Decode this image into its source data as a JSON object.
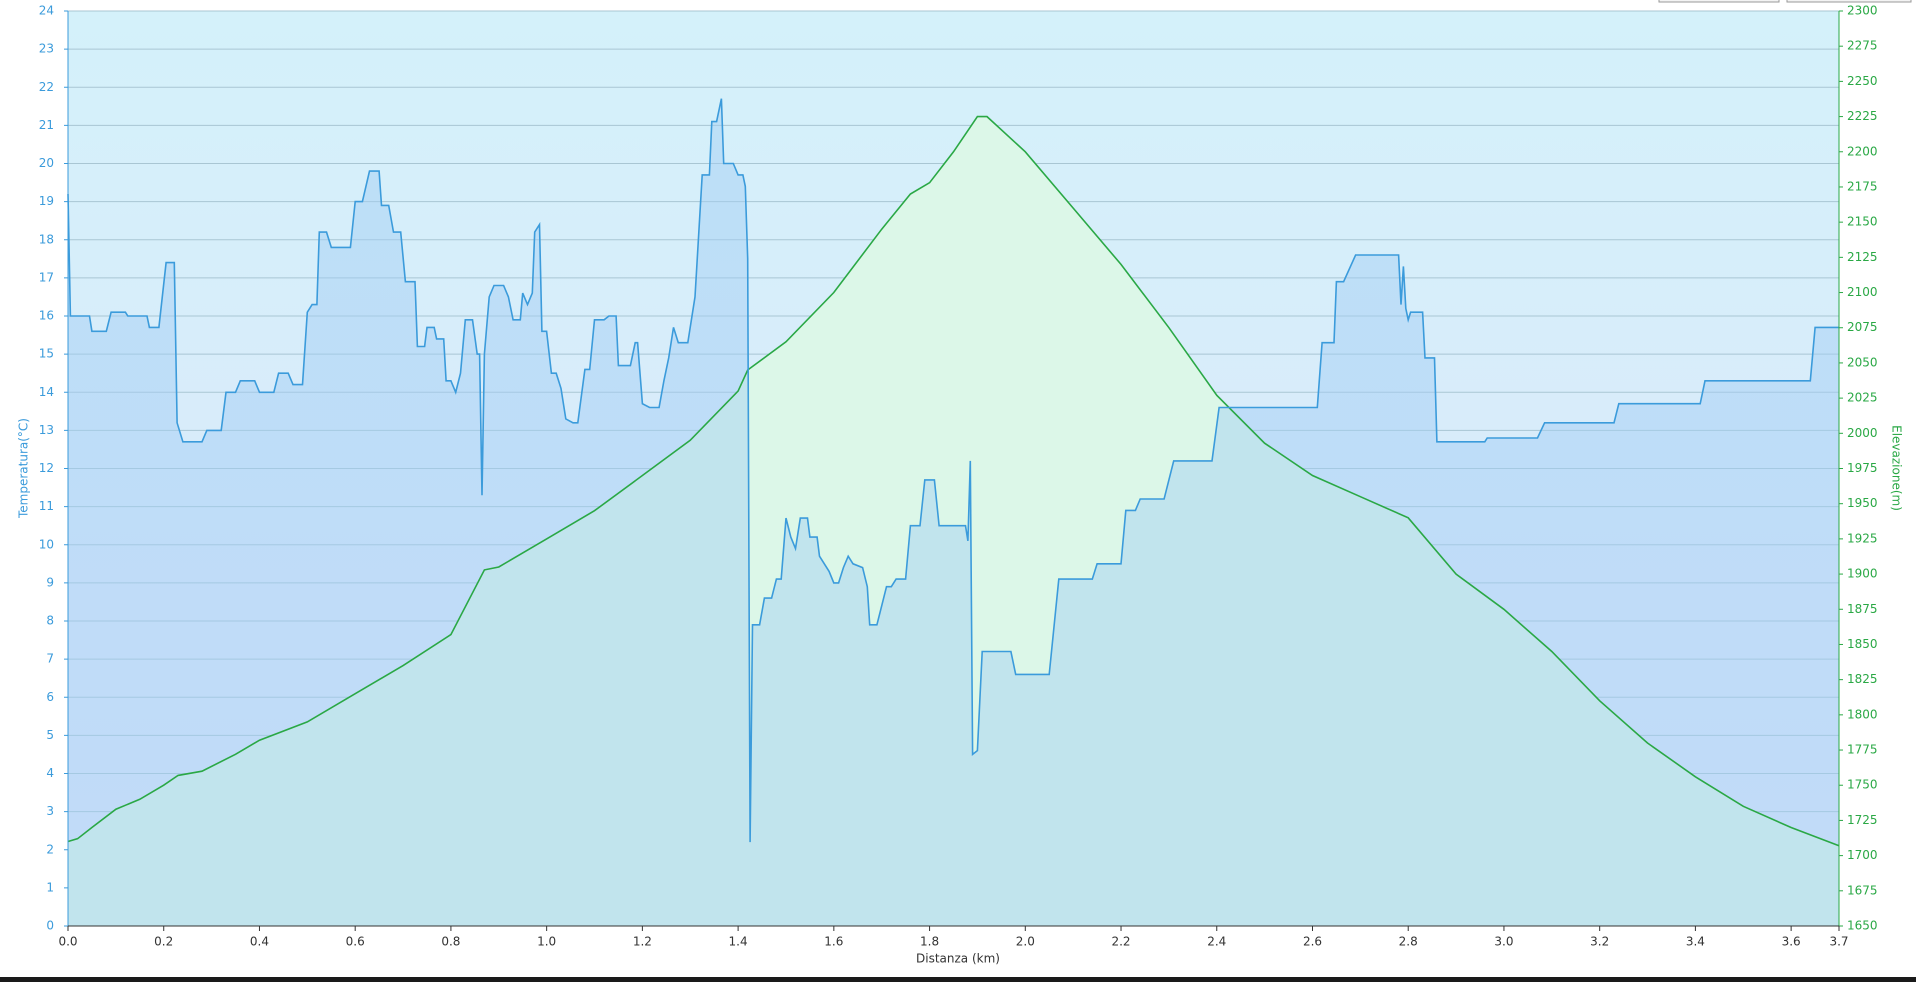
{
  "chart_data": {
    "type": "line",
    "x_label": "Distanza  (km)",
    "y_label": "Temperatura(°C)",
    "y2_label": "Elevazione(m)",
    "xlim": [
      0,
      3.7
    ],
    "xticks": [
      {
        "value": 0,
        "label": "0.0"
      },
      0.2,
      0.4,
      0.6,
      0.8,
      {
        "value": 1,
        "label": "1.0"
      },
      1.2,
      1.4,
      1.6,
      1.8,
      {
        "value": 2,
        "label": "2.0"
      },
      2.2,
      2.4,
      2.6,
      2.8,
      {
        "value": 3,
        "label": "3.0"
      },
      3.2,
      3.4,
      3.6,
      3.7
    ],
    "ylim": [
      0,
      24
    ],
    "yticks": [
      0,
      1,
      2,
      3,
      4,
      5,
      6,
      7,
      8,
      9,
      10,
      11,
      12,
      13,
      14,
      15,
      16,
      17,
      18,
      19,
      20,
      21,
      22,
      23,
      24
    ],
    "y2lim": [
      1650,
      2300
    ],
    "y2ticks": [
      1650,
      1675,
      1700,
      1725,
      1750,
      1775,
      1800,
      1825,
      1850,
      1875,
      1900,
      1925,
      1950,
      1975,
      2000,
      2025,
      2050,
      2075,
      2100,
      2125,
      2150,
      2175,
      2200,
      2225,
      2250,
      2275,
      2300
    ],
    "grid": true,
    "series": [
      {
        "name": "Elevazione",
        "axis": "y2",
        "color": "#2aa845",
        "fill": "#dcf7e8",
        "x": [
          0,
          0.02,
          0.05,
          0.1,
          0.15,
          0.2,
          0.23,
          0.28,
          0.35,
          0.4,
          0.5,
          0.6,
          0.7,
          0.8,
          0.87,
          0.9,
          1.0,
          1.1,
          1.2,
          1.3,
          1.4,
          1.42,
          1.5,
          1.6,
          1.7,
          1.76,
          1.8,
          1.85,
          1.9,
          1.92,
          2.0,
          2.1,
          2.2,
          2.3,
          2.4,
          2.5,
          2.6,
          2.7,
          2.8,
          2.9,
          3.0,
          3.1,
          3.2,
          3.3,
          3.4,
          3.5,
          3.6,
          3.7
        ],
        "values": [
          1710,
          1712,
          1720,
          1733,
          1740,
          1750,
          1757,
          1760,
          1772,
          1782,
          1795,
          1815,
          1835,
          1857,
          1903,
          1905,
          1925,
          1945,
          1970,
          1995,
          2030,
          2045,
          2065,
          2100,
          2145,
          2170,
          2178,
          2200,
          2225,
          2225,
          2200,
          2160,
          2120,
          2075,
          2027,
          1993,
          1970,
          1955,
          1940,
          1900,
          1875,
          1845,
          1810,
          1780,
          1756,
          1735,
          1720,
          1707
        ]
      },
      {
        "name": "Temperatura",
        "axis": "y",
        "color": "#3b9bdb",
        "fill": "rgba(160,205,245,0.45)",
        "x": [
          0,
          0.005,
          0.045,
          0.05,
          0.08,
          0.09,
          0.12,
          0.125,
          0.165,
          0.17,
          0.19,
          0.205,
          0.222,
          0.228,
          0.24,
          0.28,
          0.29,
          0.32,
          0.33,
          0.35,
          0.36,
          0.39,
          0.4,
          0.43,
          0.44,
          0.46,
          0.47,
          0.49,
          0.5,
          0.51,
          0.52,
          0.525,
          0.54,
          0.55,
          0.59,
          0.6,
          0.615,
          0.63,
          0.65,
          0.655,
          0.67,
          0.68,
          0.695,
          0.705,
          0.725,
          0.73,
          0.745,
          0.75,
          0.765,
          0.77,
          0.785,
          0.79,
          0.8,
          0.81,
          0.82,
          0.83,
          0.845,
          0.855,
          0.86,
          0.865,
          0.87,
          0.88,
          0.89,
          0.91,
          0.92,
          0.93,
          0.945,
          0.95,
          0.96,
          0.97,
          0.975,
          0.985,
          0.99,
          1.0,
          1.01,
          1.02,
          1.03,
          1.04,
          1.055,
          1.065,
          1.08,
          1.09,
          1.1,
          1.12,
          1.13,
          1.145,
          1.15,
          1.175,
          1.185,
          1.19,
          1.2,
          1.215,
          1.235,
          1.245,
          1.255,
          1.265,
          1.275,
          1.295,
          1.31,
          1.325,
          1.34,
          1.345,
          1.355,
          1.365,
          1.37,
          1.39,
          1.4,
          1.41,
          1.415,
          1.42,
          1.425,
          1.43,
          1.445,
          1.455,
          1.47,
          1.48,
          1.49,
          1.5,
          1.51,
          1.52,
          1.53,
          1.545,
          1.55,
          1.565,
          1.57,
          1.59,
          1.6,
          1.61,
          1.62,
          1.63,
          1.64,
          1.66,
          1.67,
          1.675,
          1.69,
          1.7,
          1.71,
          1.72,
          1.73,
          1.75,
          1.76,
          1.78,
          1.79,
          1.81,
          1.82,
          1.875,
          1.88,
          1.885,
          1.89,
          1.9,
          1.91,
          1.97,
          1.98,
          2.05,
          2.07,
          2.14,
          2.15,
          2.2,
          2.21,
          2.23,
          2.24,
          2.29,
          2.31,
          2.39,
          2.405,
          2.61,
          2.62,
          2.645,
          2.65,
          2.665,
          2.69,
          2.78,
          2.785,
          2.79,
          2.795,
          2.8,
          2.805,
          2.83,
          2.835,
          2.855,
          2.86,
          2.96,
          2.965,
          3.07,
          3.085,
          3.23,
          3.24,
          3.41,
          3.42,
          3.64,
          3.65,
          3.7
        ],
        "values": [
          19.2,
          16,
          16,
          15.6,
          15.6,
          16.1,
          16.1,
          16,
          16,
          15.7,
          15.7,
          17.4,
          17.4,
          13.2,
          12.7,
          12.7,
          13,
          13,
          14,
          14,
          14.3,
          14.3,
          14,
          14,
          14.5,
          14.5,
          14.2,
          14.2,
          16.1,
          16.3,
          16.3,
          18.2,
          18.2,
          17.8,
          17.8,
          19,
          19,
          19.8,
          19.8,
          18.9,
          18.9,
          18.2,
          18.2,
          16.9,
          16.9,
          15.2,
          15.2,
          15.7,
          15.7,
          15.4,
          15.4,
          14.3,
          14.3,
          14,
          14.5,
          15.9,
          15.9,
          15,
          15,
          11.3,
          15,
          16.5,
          16.8,
          16.8,
          16.5,
          15.9,
          15.9,
          16.6,
          16.3,
          16.6,
          18.2,
          18.4,
          15.6,
          15.6,
          14.5,
          14.5,
          14.1,
          13.3,
          13.2,
          13.2,
          14.6,
          14.6,
          15.9,
          15.9,
          16,
          16,
          14.7,
          14.7,
          15.3,
          15.3,
          13.7,
          13.6,
          13.6,
          14.3,
          14.9,
          15.7,
          15.3,
          15.3,
          16.5,
          19.7,
          19.7,
          21.1,
          21.1,
          21.7,
          20,
          20,
          19.7,
          19.7,
          19.4,
          17.5,
          2.2,
          7.9,
          7.9,
          8.6,
          8.6,
          9.1,
          9.1,
          10.7,
          10.2,
          9.9,
          10.7,
          10.7,
          10.2,
          10.2,
          9.7,
          9.3,
          9,
          9,
          9.4,
          9.7,
          9.5,
          9.4,
          8.9,
          7.9,
          7.9,
          8.4,
          8.9,
          8.9,
          9.1,
          9.1,
          10.5,
          10.5,
          11.7,
          11.7,
          10.5,
          10.5,
          10.1,
          12.2,
          4.5,
          4.6,
          7.2,
          7.2,
          6.6,
          6.6,
          9.1,
          9.1,
          9.5,
          9.5,
          10.9,
          10.9,
          11.2,
          11.2,
          12.2,
          12.2,
          13.6,
          13.6,
          15.3,
          15.3,
          16.9,
          16.9,
          17.6,
          17.6,
          16.3,
          17.3,
          16.2,
          15.9,
          16.1,
          16.1,
          14.9,
          14.9,
          12.7,
          12.7,
          12.8,
          12.8,
          13.2,
          13.2,
          13.7,
          13.7,
          14.3,
          14.3,
          15.7,
          15.7
        ]
      }
    ]
  }
}
